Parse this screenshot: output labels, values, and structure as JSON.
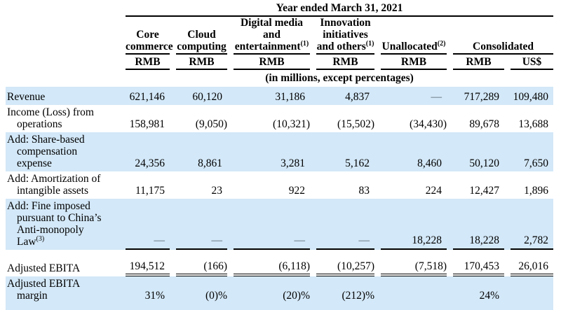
{
  "colors": {
    "row_highlight": "#d3e8f8",
    "rule": "#000000",
    "text": "#000000"
  },
  "header": {
    "title": "Year ended March 31, 2021",
    "units_note": "(in millions, except percentages)",
    "groups": [
      {
        "text": "Core\ncommerce",
        "sup": ""
      },
      {
        "text": "Cloud\ncomputing",
        "sup": ""
      },
      {
        "text": "Digital media\nand\nentertainment",
        "sup": "(1)"
      },
      {
        "text": "Innovation\ninitiatives\nand others",
        "sup": "(1)"
      },
      {
        "text": "Unallocated",
        "sup": "(2)"
      },
      {
        "text": "Consolidated",
        "sup": ""
      }
    ],
    "currencies": [
      "RMB",
      "RMB",
      "RMB",
      "RMB",
      "RMB",
      "RMB",
      "US$"
    ]
  },
  "rows": [
    {
      "label": "Revenue",
      "sup": "",
      "values": [
        "621,146",
        "60,120",
        "31,186",
        "4,837",
        "—",
        "717,289",
        "109,480"
      ],
      "bg": "blue",
      "rule": "none"
    },
    {
      "label": "Income (Loss) from\noperations",
      "sup": "",
      "values": [
        "158,981",
        "(9,050)",
        "(10,321)",
        "(15,502)",
        "(34,430)",
        "89,678",
        "13,688"
      ],
      "bg": "white",
      "rule": "none"
    },
    {
      "label": "Add: Share-based\ncompensation\nexpense",
      "sup": "",
      "values": [
        "24,356",
        "8,861",
        "3,281",
        "5,162",
        "8,460",
        "50,120",
        "7,650"
      ],
      "bg": "blue",
      "rule": "none"
    },
    {
      "label": "Add: Amortization of\nintangible assets",
      "sup": "",
      "values": [
        "11,175",
        "23",
        "922",
        "83",
        "224",
        "12,427",
        "1,896"
      ],
      "bg": "white",
      "rule": "none"
    },
    {
      "label": "Add: Fine imposed\npursuant to China’s\nAnti-monopoly\nLaw",
      "sup": "(3)",
      "values": [
        "—",
        "—",
        "—",
        "—",
        "18,228",
        "18,228",
        "2,782"
      ],
      "bg": "blue",
      "rule": "single"
    },
    {
      "type": "spacer"
    },
    {
      "label": "Adjusted EBITA",
      "sup": "",
      "values": [
        "194,512",
        "(166)",
        "(6,118)",
        "(10,257)",
        "(7,518)",
        "170,453",
        "26,016"
      ],
      "bg": "white",
      "rule": "double"
    },
    {
      "label": "Adjusted EBITA\nmargin",
      "sup": "",
      "values": [
        "31%",
        "(0)%",
        "(20)%",
        "(212)%",
        "",
        "24%",
        ""
      ],
      "bg": "blue",
      "rule": "none"
    }
  ]
}
